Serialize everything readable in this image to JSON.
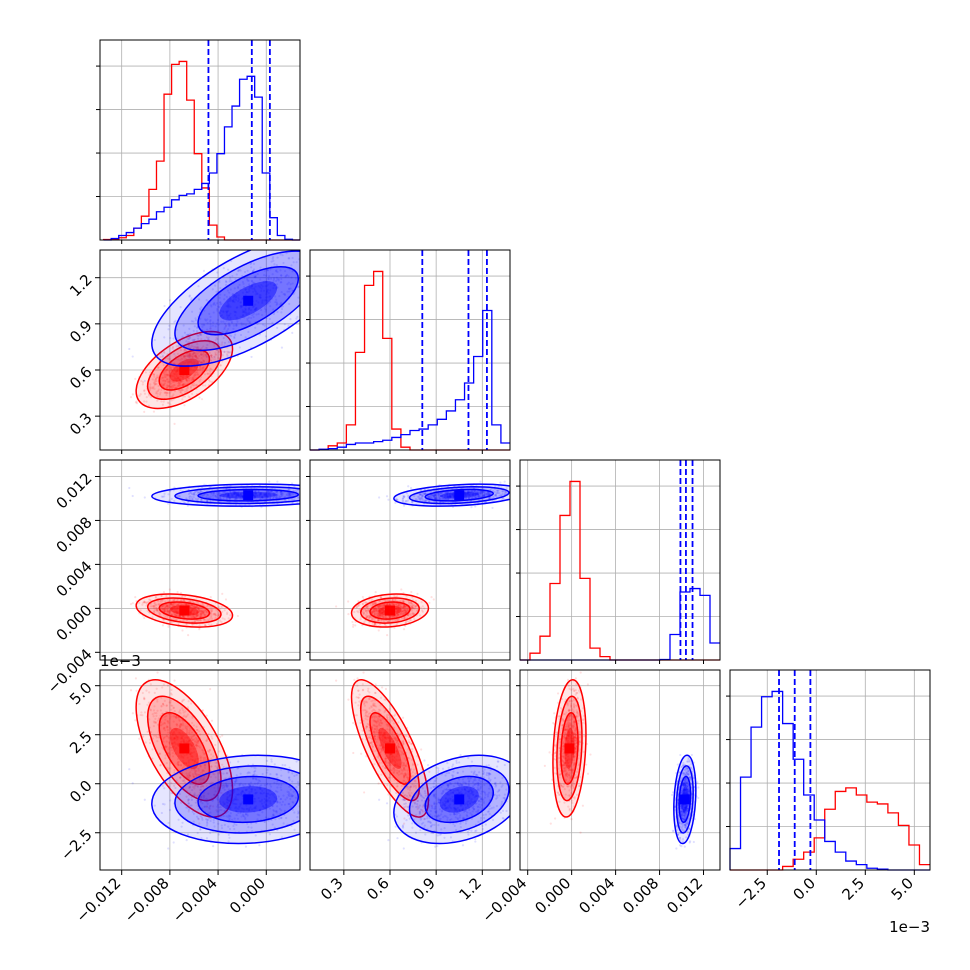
{
  "colors": {
    "red": "#ff0000",
    "blue": "#0000ff",
    "grid": "#b0b0b0"
  },
  "chart_data": {
    "type": "corner",
    "series": [
      {
        "color": "#ff0000",
        "name": ""
      },
      {
        "color": "#0000ff",
        "name": ""
      }
    ],
    "grid": true,
    "params": [
      {
        "range": [
          -0.0138,
          0.0028
        ],
        "ticks": [
          -0.012,
          -0.008,
          -0.004,
          0.0
        ],
        "tick_labels": [
          "−0.012",
          "−0.008",
          "−0.004",
          "0.000"
        ]
      },
      {
        "range": [
          0.08,
          1.38
        ],
        "ticks": [
          0.3,
          0.6,
          0.9,
          1.2
        ],
        "tick_labels": [
          "0.3",
          "0.6",
          "0.9",
          "1.2"
        ]
      },
      {
        "range": [
          -0.0047,
          0.0135
        ],
        "ticks": [
          -0.004,
          0.0,
          0.004,
          0.008,
          0.012
        ],
        "tick_labels": [
          "−0.004",
          "0.000",
          "0.004",
          "0.008",
          "0.012"
        ]
      },
      {
        "range": [
          -4.4,
          5.8
        ],
        "ticks": [
          -2.5,
          0.0,
          2.5,
          5.0
        ],
        "tick_labels": [
          "−2.5",
          "0.0",
          "2.5",
          "5.0"
        ],
        "offset_text": "1e−3"
      }
    ],
    "histograms": [
      {
        "red_edges": [
          -0.0135,
          0.0028
        ],
        "red": [
          0.3,
          0.5,
          1.5,
          3,
          8,
          16,
          34,
          53,
          98,
          118,
          120,
          94,
          58,
          35,
          10,
          2,
          0,
          0,
          0,
          0,
          0,
          0,
          0,
          0,
          0,
          0
        ],
        "blue": [
          0,
          1,
          3,
          5,
          8,
          11,
          14,
          19,
          22,
          27,
          30,
          31,
          34,
          38,
          45,
          58,
          76,
          90,
          108,
          110,
          96,
          45,
          15,
          3,
          0.5,
          0
        ],
        "blue_quantiles": [
          -0.0048,
          -0.0012,
          0.0003
        ]
      },
      {
        "red_edges": [
          0.08,
          1.38
        ],
        "red": [
          0,
          0.3,
          3,
          5,
          18,
          70,
          118,
          128,
          80,
          15,
          2,
          0,
          0,
          0,
          0,
          0,
          0,
          0,
          0,
          0,
          0,
          0
        ],
        "blue": [
          0,
          0.5,
          1,
          2,
          4,
          5,
          5,
          6,
          7,
          9,
          11,
          14,
          15,
          18,
          22,
          28,
          36,
          48,
          67,
          100,
          18,
          5
        ],
        "blue_quantiles": [
          0.81,
          1.11,
          1.23
        ]
      },
      {
        "red_edges": [
          -0.0047,
          0.0135
        ],
        "red": [
          0,
          4,
          14,
          45,
          85,
          105,
          48,
          7,
          2,
          0,
          0,
          0,
          0,
          0,
          0,
          0,
          0,
          0,
          0,
          0
        ],
        "blue": [
          0,
          0,
          0,
          0,
          0,
          0,
          0,
          0,
          0,
          0,
          0,
          0,
          0,
          0,
          0.3,
          15,
          40,
          42,
          38,
          10
        ],
        "blue_quantiles": [
          0.0099,
          0.0104,
          0.011
        ]
      },
      {
        "red_edges": [
          -4.4,
          5.8
        ],
        "red": [
          0,
          0,
          0,
          0,
          0,
          2,
          6,
          10,
          18,
          34,
          44,
          46,
          42,
          38,
          37,
          32,
          25,
          14,
          3
        ],
        "blue": [
          12,
          52,
          80,
          97,
          100,
          82,
          62,
          42,
          28,
          16,
          10,
          5,
          3,
          1,
          0.5,
          0,
          0,
          0,
          0
        ],
        "blue_quantiles": [
          -1.9,
          -1.1,
          -0.3
        ]
      }
    ],
    "clusters": [
      {
        "name": "red",
        "mean": [
          -0.0068,
          0.6,
          -0.0002,
          1.8
        ],
        "sd": [
          0.0016,
          0.1,
          0.0006,
          1.4
        ],
        "corr": [
          [
            1,
            0.55,
            -0.3,
            -0.6
          ],
          [
            0.55,
            1,
            0.15,
            -0.75
          ],
          [
            -0.3,
            0.15,
            1,
            0.2
          ],
          [
            -0.6,
            -0.75,
            0.2,
            1
          ]
        ]
      },
      {
        "name": "blue",
        "mean": [
          -0.0015,
          1.05,
          0.0103,
          -0.8
        ],
        "sd": [
          0.0032,
          0.17,
          0.0004,
          0.9
        ],
        "corr": [
          [
            1,
            0.65,
            0.1,
            0.1
          ],
          [
            0.65,
            1,
            0.3,
            0.3
          ],
          [
            0.1,
            0.3,
            1,
            0.2
          ],
          [
            0.1,
            0.3,
            0.2,
            1
          ]
        ]
      }
    ]
  }
}
